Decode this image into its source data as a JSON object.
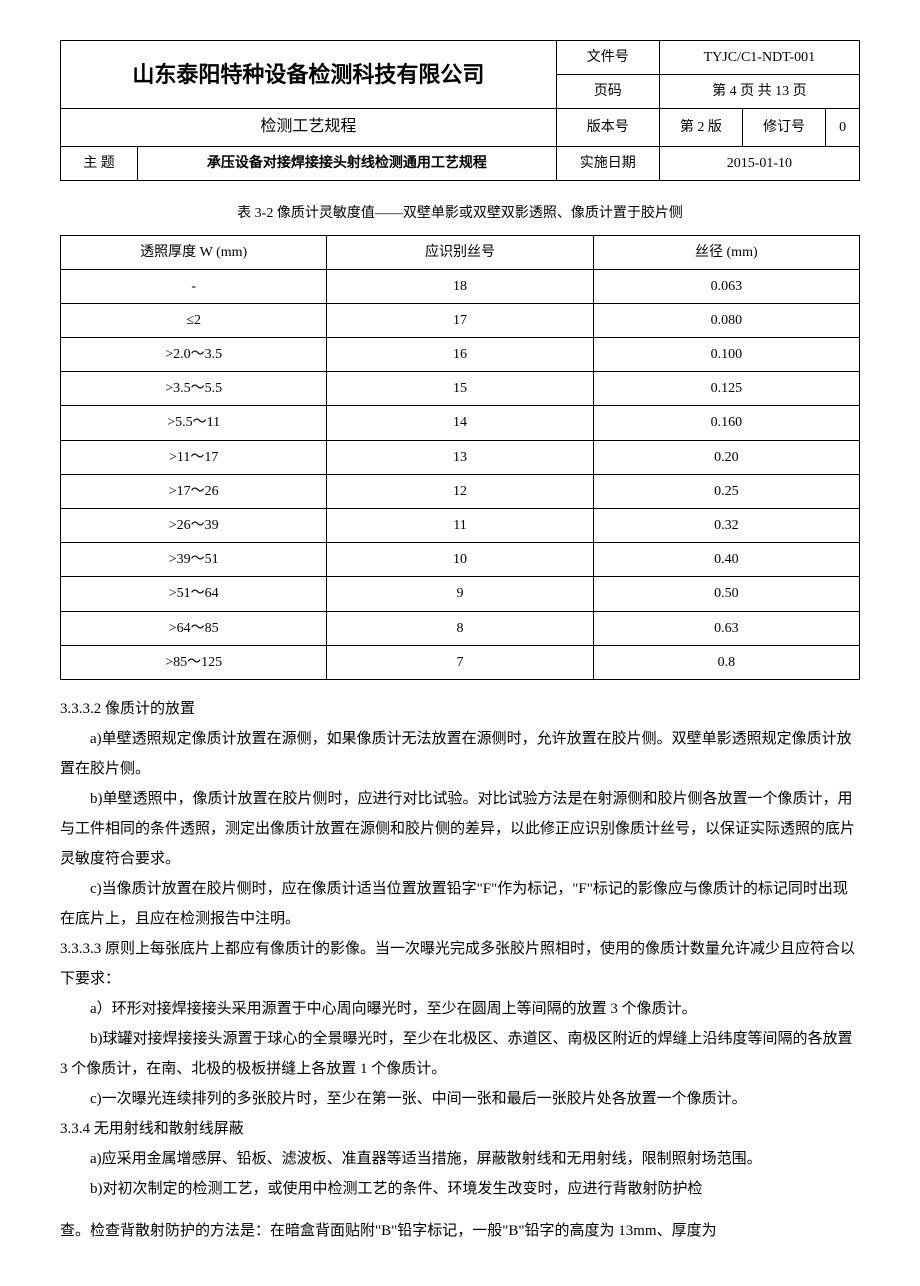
{
  "header": {
    "company": "山东泰阳特种设备检测科技有限公司",
    "doc_no_label": "文件号",
    "doc_no": "TYJC/C1-NDT-001",
    "page_label": "页码",
    "page_info": "第 4 页  共 13 页",
    "subtitle": "检测工艺规程",
    "version_label": "版本号",
    "version": "第 2 版",
    "rev_label": "修订号",
    "rev": "0",
    "topic_label": "主    题",
    "topic": "承压设备对接焊接接头射线检测通用工艺规程",
    "date_label": "实施日期",
    "date": "2015-01-10"
  },
  "table": {
    "caption": "表 3-2 像质计灵敏度值——双壁单影或双壁双影透照、像质计置于胶片侧",
    "col1": "透照厚度 W (mm)",
    "col2": "应识别丝号",
    "col3": "丝径 (mm)",
    "rows": [
      {
        "w": "-",
        "wire": "18",
        "dia": "0.063"
      },
      {
        "w": "≤2",
        "wire": "17",
        "dia": "0.080"
      },
      {
        "w": ">2.0～3.5",
        "wire": "16",
        "dia": "0.100"
      },
      {
        "w": ">3.5～5.5",
        "wire": "15",
        "dia": "0.125"
      },
      {
        "w": ">5.5～11",
        "wire": "14",
        "dia": "0.160"
      },
      {
        "w": ">11～17",
        "wire": "13",
        "dia": "0.20"
      },
      {
        "w": ">17～26",
        "wire": "12",
        "dia": "0.25"
      },
      {
        "w": ">26～39",
        "wire": "11",
        "dia": "0.32"
      },
      {
        "w": ">39～51",
        "wire": "10",
        "dia": "0.40"
      },
      {
        "w": ">51～64",
        "wire": "9",
        "dia": "0.50"
      },
      {
        "w": ">64～85",
        "wire": "8",
        "dia": "0.63"
      },
      {
        "w": ">85～125",
        "wire": "7",
        "dia": "0.8"
      }
    ]
  },
  "body": {
    "s3332": "3.3.3.2 像质计的放置",
    "p_a1": "a)单壁透照规定像质计放置在源侧，如果像质计无法放置在源侧时，允许放置在胶片侧。双壁单影透照规定像质计放置在胶片侧。",
    "p_b1": "b)单壁透照中，像质计放置在胶片侧时，应进行对比试验。对比试验方法是在射源侧和胶片侧各放置一个像质计，用与工件相同的条件透照，测定出像质计放置在源侧和胶片侧的差异，以此修正应识别像质计丝号，以保证实际透照的底片灵敏度符合要求。",
    "p_c1": "c)当像质计放置在胶片侧时，应在像质计适当位置放置铅字\"F\"作为标记，\"F\"标记的影像应与像质计的标记同时出现在底片上，且应在检测报告中注明。",
    "s3333": "3.3.3.3 原则上每张底片上都应有像质计的影像。当一次曝光完成多张胶片照相时，使用的像质计数量允许减少且应符合以下要求：",
    "p_a2": "a）环形对接焊接接头采用源置于中心周向曝光时，至少在圆周上等间隔的放置 3 个像质计。",
    "p_b2": "b)球罐对接焊接接头源置于球心的全景曝光时，至少在北极区、赤道区、南极区附近的焊缝上沿纬度等间隔的各放置 3 个像质计，在南、北极的极板拼缝上各放置 1 个像质计。",
    "p_c2": "c)一次曝光连续排列的多张胶片时，至少在第一张、中间一张和最后一张胶片处各放置一个像质计。",
    "s334": "3.3.4 无用射线和散射线屏蔽",
    "p_a3": "a)应采用金属增感屏、铅板、滤波板、准直器等适当措施，屏蔽散射线和无用射线，限制照射场范围。",
    "p_b3": "b)对初次制定的检测工艺，或使用中检测工艺的条件、环境发生改变时，应进行背散射防护检",
    "p_last": "查。检查背散射防护的方法是：在暗盒背面贴附\"B\"铅字标记，一般\"B\"铅字的高度为 13mm、厚度为"
  }
}
